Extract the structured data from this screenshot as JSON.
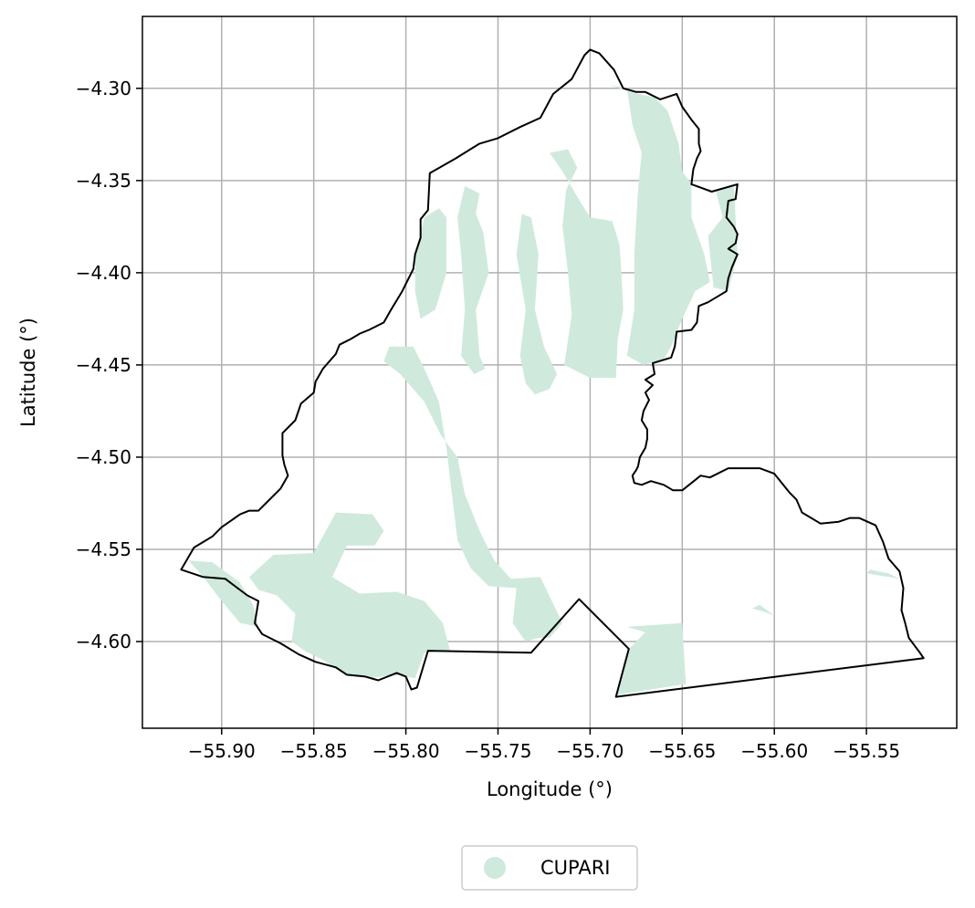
{
  "chart_data": {
    "type": "map",
    "xlabel": "Longitude (°)",
    "ylabel": "Latitude (°)",
    "xlim": [
      -55.943,
      -55.501
    ],
    "ylim": [
      -4.647,
      -4.261
    ],
    "x_ticks": [
      {
        "value": -55.9,
        "label": "−55.90"
      },
      {
        "value": -55.85,
        "label": "−55.85"
      },
      {
        "value": -55.8,
        "label": "−55.80"
      },
      {
        "value": -55.75,
        "label": "−55.75"
      },
      {
        "value": -55.7,
        "label": "−55.70"
      },
      {
        "value": -55.65,
        "label": "−55.65"
      },
      {
        "value": -55.6,
        "label": "−55.60"
      },
      {
        "value": -55.55,
        "label": "−55.55"
      }
    ],
    "y_ticks": [
      {
        "value": -4.3,
        "label": "−4.30"
      },
      {
        "value": -4.35,
        "label": "−4.35"
      },
      {
        "value": -4.4,
        "label": "−4.40"
      },
      {
        "value": -4.45,
        "label": "−4.45"
      },
      {
        "value": -4.5,
        "label": "−4.50"
      },
      {
        "value": -4.55,
        "label": "−4.55"
      },
      {
        "value": -4.6,
        "label": "−4.60"
      }
    ],
    "grid": true,
    "legend_position": "bottom-center",
    "colors": {
      "fill": "#cfeadc",
      "boundary": "#000000",
      "grid": "#b0b0b0"
    },
    "series": [
      {
        "name": "CUPARI",
        "type": "fill"
      }
    ],
    "boundary_outline": [
      [
        -55.922,
        -4.561
      ],
      [
        -55.915,
        -4.549
      ],
      [
        -55.905,
        -4.543
      ],
      [
        -55.9,
        -4.538
      ],
      [
        -55.89,
        -4.531
      ],
      [
        -55.885,
        -4.529
      ],
      [
        -55.88,
        -4.529
      ],
      [
        -55.875,
        -4.524
      ],
      [
        -55.868,
        -4.517
      ],
      [
        -55.864,
        -4.51
      ],
      [
        -55.866,
        -4.504
      ],
      [
        -55.867,
        -4.499
      ],
      [
        -55.867,
        -4.487
      ],
      [
        -55.86,
        -4.48
      ],
      [
        -55.857,
        -4.471
      ],
      [
        -55.85,
        -4.465
      ],
      [
        -55.849,
        -4.459
      ],
      [
        -55.845,
        -4.452
      ],
      [
        -55.838,
        -4.444
      ],
      [
        -55.836,
        -4.439
      ],
      [
        -55.83,
        -4.436
      ],
      [
        -55.825,
        -4.433
      ],
      [
        -55.82,
        -4.431
      ],
      [
        -55.812,
        -4.427
      ],
      [
        -55.808,
        -4.42
      ],
      [
        -55.802,
        -4.41
      ],
      [
        -55.796,
        -4.398
      ],
      [
        -55.795,
        -4.39
      ],
      [
        -55.792,
        -4.381
      ],
      [
        -55.792,
        -4.371
      ],
      [
        -55.788,
        -4.366
      ],
      [
        -55.787,
        -4.346
      ],
      [
        -55.773,
        -4.338
      ],
      [
        -55.76,
        -4.33
      ],
      [
        -55.75,
        -4.327
      ],
      [
        -55.738,
        -4.321
      ],
      [
        -55.727,
        -4.316
      ],
      [
        -55.72,
        -4.303
      ],
      [
        -55.71,
        -4.295
      ],
      [
        -55.703,
        -4.282
      ],
      [
        -55.7,
        -4.279
      ],
      [
        -55.695,
        -4.281
      ],
      [
        -55.687,
        -4.29
      ],
      [
        -55.682,
        -4.3
      ],
      [
        -55.675,
        -4.302
      ],
      [
        -55.67,
        -4.302
      ],
      [
        -55.662,
        -4.306
      ],
      [
        -55.653,
        -4.303
      ],
      [
        -55.65,
        -4.31
      ],
      [
        -55.645,
        -4.317
      ],
      [
        -55.641,
        -4.322
      ],
      [
        -55.641,
        -4.33
      ],
      [
        -55.64,
        -4.334
      ],
      [
        -55.642,
        -4.338
      ],
      [
        -55.644,
        -4.344
      ],
      [
        -55.645,
        -4.352
      ],
      [
        -55.634,
        -4.356
      ],
      [
        -55.62,
        -4.352
      ],
      [
        -55.621,
        -4.36
      ],
      [
        -55.625,
        -4.361
      ],
      [
        -55.626,
        -4.37
      ],
      [
        -55.622,
        -4.375
      ],
      [
        -55.62,
        -4.379
      ],
      [
        -55.621,
        -4.384
      ],
      [
        -55.625,
        -4.387
      ],
      [
        -55.62,
        -4.39
      ],
      [
        -55.623,
        -4.397
      ],
      [
        -55.625,
        -4.403
      ],
      [
        -55.626,
        -4.41
      ],
      [
        -55.631,
        -4.413
      ],
      [
        -55.636,
        -4.416
      ],
      [
        -55.641,
        -4.418
      ],
      [
        -55.642,
        -4.427
      ],
      [
        -55.645,
        -4.431
      ],
      [
        -55.653,
        -4.432
      ],
      [
        -55.654,
        -4.44
      ],
      [
        -55.656,
        -4.446
      ],
      [
        -55.666,
        -4.449
      ],
      [
        -55.665,
        -4.455
      ],
      [
        -55.67,
        -4.458
      ],
      [
        -55.666,
        -4.461
      ],
      [
        -55.67,
        -4.465
      ],
      [
        -55.668,
        -4.469
      ],
      [
        -55.671,
        -4.475
      ],
      [
        -55.672,
        -4.48
      ],
      [
        -55.669,
        -4.485
      ],
      [
        -55.669,
        -4.49
      ],
      [
        -55.67,
        -4.495
      ],
      [
        -55.673,
        -4.5
      ],
      [
        -55.674,
        -4.505
      ],
      [
        -55.675,
        -4.507
      ],
      [
        -55.677,
        -4.51
      ],
      [
        -55.676,
        -4.514
      ],
      [
        -55.672,
        -4.515
      ],
      [
        -55.667,
        -4.513
      ],
      [
        -55.66,
        -4.515
      ],
      [
        -55.655,
        -4.518
      ],
      [
        -55.65,
        -4.518
      ],
      [
        -55.64,
        -4.51
      ],
      [
        -55.635,
        -4.511
      ],
      [
        -55.625,
        -4.506
      ],
      [
        -55.608,
        -4.506
      ],
      [
        -55.6,
        -4.509
      ],
      [
        -55.592,
        -4.519
      ],
      [
        -55.588,
        -4.523
      ],
      [
        -55.585,
        -4.53
      ],
      [
        -55.58,
        -4.533
      ],
      [
        -55.575,
        -4.536
      ],
      [
        -55.565,
        -4.535
      ],
      [
        -55.559,
        -4.533
      ],
      [
        -55.554,
        -4.533
      ],
      [
        -55.545,
        -4.537
      ],
      [
        -55.541,
        -4.546
      ],
      [
        -55.538,
        -4.555
      ],
      [
        -55.532,
        -4.562
      ],
      [
        -55.53,
        -4.571
      ],
      [
        -55.531,
        -4.583
      ],
      [
        -55.529,
        -4.59
      ],
      [
        -55.527,
        -4.598
      ],
      [
        -55.521,
        -4.606
      ],
      [
        -55.519,
        -4.609
      ],
      [
        -55.686,
        -4.63
      ],
      [
        -55.679,
        -4.604
      ],
      [
        -55.706,
        -4.577
      ],
      [
        -55.732,
        -4.606
      ],
      [
        -55.788,
        -4.605
      ],
      [
        -55.794,
        -4.625
      ],
      [
        -55.797,
        -4.626
      ],
      [
        -55.8,
        -4.619
      ],
      [
        -55.805,
        -4.617
      ],
      [
        -55.815,
        -4.621
      ],
      [
        -55.822,
        -4.619
      ],
      [
        -55.832,
        -4.618
      ],
      [
        -55.838,
        -4.614
      ],
      [
        -55.849,
        -4.611
      ],
      [
        -55.858,
        -4.607
      ],
      [
        -55.868,
        -4.601
      ],
      [
        -55.878,
        -4.596
      ],
      [
        -55.882,
        -4.59
      ],
      [
        -55.88,
        -4.578
      ],
      [
        -55.886,
        -4.575
      ],
      [
        -55.898,
        -4.566
      ],
      [
        -55.91,
        -4.565
      ],
      [
        -55.922,
        -4.561
      ]
    ],
    "fill_regions": [
      [
        [
          -55.79,
          -4.37
        ],
        [
          -55.782,
          -4.365
        ],
        [
          -55.778,
          -4.37
        ],
        [
          -55.778,
          -4.4
        ],
        [
          -55.784,
          -4.42
        ],
        [
          -55.792,
          -4.425
        ],
        [
          -55.795,
          -4.41
        ],
        [
          -55.795,
          -4.39
        ]
      ],
      [
        [
          -55.768,
          -4.353
        ],
        [
          -55.76,
          -4.357
        ],
        [
          -55.762,
          -4.368
        ],
        [
          -55.758,
          -4.378
        ],
        [
          -55.755,
          -4.4
        ],
        [
          -55.762,
          -4.42
        ],
        [
          -55.76,
          -4.445
        ],
        [
          -55.757,
          -4.452
        ],
        [
          -55.763,
          -4.455
        ],
        [
          -55.77,
          -4.445
        ],
        [
          -55.768,
          -4.42
        ],
        [
          -55.77,
          -4.39
        ],
        [
          -55.772,
          -4.37
        ]
      ],
      [
        [
          -55.745,
          -4.365
        ],
        [
          -55.737,
          -4.368
        ],
        [
          -55.74,
          -4.39
        ],
        [
          -55.735,
          -4.42
        ],
        [
          -55.738,
          -4.445
        ],
        [
          -55.735,
          -4.46
        ],
        [
          -55.73,
          -4.466
        ],
        [
          -55.722,
          -4.463
        ],
        [
          -55.718,
          -4.455
        ],
        [
          -55.725,
          -4.44
        ],
        [
          -55.73,
          -4.42
        ],
        [
          -55.728,
          -4.39
        ],
        [
          -55.732,
          -4.37
        ]
      ],
      [
        [
          -55.722,
          -4.335
        ],
        [
          -55.712,
          -4.333
        ],
        [
          -55.707,
          -4.343
        ],
        [
          -55.713,
          -4.355
        ],
        [
          -55.715,
          -4.375
        ],
        [
          -55.712,
          -4.4
        ],
        [
          -55.71,
          -4.423
        ],
        [
          -55.714,
          -4.45
        ],
        [
          -55.7,
          -4.457
        ],
        [
          -55.686,
          -4.457
        ],
        [
          -55.685,
          -4.436
        ],
        [
          -55.682,
          -4.42
        ],
        [
          -55.683,
          -4.4
        ],
        [
          -55.684,
          -4.385
        ],
        [
          -55.688,
          -4.372
        ],
        [
          -55.7,
          -4.37
        ],
        [
          -55.705,
          -4.362
        ],
        [
          -55.715,
          -4.345
        ]
      ],
      [
        [
          -55.69,
          -4.298
        ],
        [
          -55.68,
          -4.3
        ],
        [
          -55.677,
          -4.32
        ],
        [
          -55.672,
          -4.335
        ],
        [
          -55.674,
          -4.355
        ],
        [
          -55.676,
          -4.39
        ],
        [
          -55.676,
          -4.42
        ],
        [
          -55.68,
          -4.445
        ],
        [
          -55.671,
          -4.45
        ],
        [
          -55.66,
          -4.447
        ],
        [
          -55.656,
          -4.44
        ],
        [
          -55.65,
          -4.425
        ],
        [
          -55.643,
          -4.41
        ],
        [
          -55.635,
          -4.405
        ],
        [
          -55.638,
          -4.39
        ],
        [
          -55.645,
          -4.37
        ],
        [
          -55.645,
          -4.352
        ],
        [
          -55.65,
          -4.345
        ],
        [
          -55.652,
          -4.33
        ],
        [
          -55.658,
          -4.312
        ],
        [
          -55.665,
          -4.305
        ],
        [
          -55.678,
          -4.302
        ]
      ],
      [
        [
          -55.632,
          -4.355
        ],
        [
          -55.622,
          -4.352
        ],
        [
          -55.62,
          -4.39
        ],
        [
          -55.625,
          -4.41
        ],
        [
          -55.633,
          -4.408
        ],
        [
          -55.636,
          -4.38
        ],
        [
          -55.628,
          -4.37
        ]
      ],
      [
        [
          -55.809,
          -4.44
        ],
        [
          -55.796,
          -4.44
        ],
        [
          -55.79,
          -4.452
        ],
        [
          -55.782,
          -4.47
        ],
        [
          -55.778,
          -4.495
        ],
        [
          -55.775,
          -4.52
        ],
        [
          -55.772,
          -4.545
        ],
        [
          -55.765,
          -4.56
        ],
        [
          -55.755,
          -4.57
        ],
        [
          -55.74,
          -4.571
        ],
        [
          -55.742,
          -4.59
        ],
        [
          -55.735,
          -4.6
        ],
        [
          -55.728,
          -4.598
        ],
        [
          -55.722,
          -4.598
        ],
        [
          -55.715,
          -4.59
        ],
        [
          -55.727,
          -4.565
        ],
        [
          -55.743,
          -4.566
        ],
        [
          -55.752,
          -4.556
        ],
        [
          -55.76,
          -4.54
        ],
        [
          -55.768,
          -4.52
        ],
        [
          -55.772,
          -4.5
        ],
        [
          -55.781,
          -4.488
        ],
        [
          -55.79,
          -4.47
        ],
        [
          -55.803,
          -4.455
        ],
        [
          -55.812,
          -4.448
        ]
      ],
      [
        [
          -55.885,
          -4.565
        ],
        [
          -55.872,
          -4.553
        ],
        [
          -55.85,
          -4.552
        ],
        [
          -55.838,
          -4.53
        ],
        [
          -55.818,
          -4.531
        ],
        [
          -55.812,
          -4.54
        ],
        [
          -55.817,
          -4.548
        ],
        [
          -55.832,
          -4.548
        ],
        [
          -55.84,
          -4.565
        ],
        [
          -55.825,
          -4.574
        ],
        [
          -55.805,
          -4.573
        ],
        [
          -55.79,
          -4.578
        ],
        [
          -55.78,
          -4.59
        ],
        [
          -55.776,
          -4.605
        ],
        [
          -55.79,
          -4.606
        ],
        [
          -55.795,
          -4.62
        ],
        [
          -55.805,
          -4.618
        ],
        [
          -55.82,
          -4.62
        ],
        [
          -55.835,
          -4.617
        ],
        [
          -55.845,
          -4.61
        ],
        [
          -55.855,
          -4.605
        ],
        [
          -55.862,
          -4.6
        ],
        [
          -55.86,
          -4.585
        ],
        [
          -55.87,
          -4.575
        ],
        [
          -55.88,
          -4.572
        ]
      ],
      [
        [
          -55.918,
          -4.556
        ],
        [
          -55.905,
          -4.557
        ],
        [
          -55.89,
          -4.568
        ],
        [
          -55.883,
          -4.58
        ],
        [
          -55.88,
          -4.592
        ],
        [
          -55.89,
          -4.59
        ],
        [
          -55.9,
          -4.578
        ],
        [
          -55.91,
          -4.565
        ]
      ],
      [
        [
          -55.67,
          -4.595
        ],
        [
          -55.68,
          -4.592
        ],
        [
          -55.65,
          -4.59
        ],
        [
          -55.648,
          -4.623
        ],
        [
          -55.686,
          -4.629
        ],
        [
          -55.679,
          -4.604
        ]
      ],
      [
        [
          -55.548,
          -4.561
        ],
        [
          -55.538,
          -4.563
        ],
        [
          -55.532,
          -4.566
        ],
        [
          -55.55,
          -4.563
        ]
      ],
      [
        [
          -55.612,
          -4.582
        ],
        [
          -55.605,
          -4.584
        ],
        [
          -55.6,
          -4.586
        ],
        [
          -55.608,
          -4.58
        ]
      ]
    ]
  },
  "legend": {
    "items": [
      {
        "label": "CUPARI",
        "color": "#cfeadc"
      }
    ]
  }
}
